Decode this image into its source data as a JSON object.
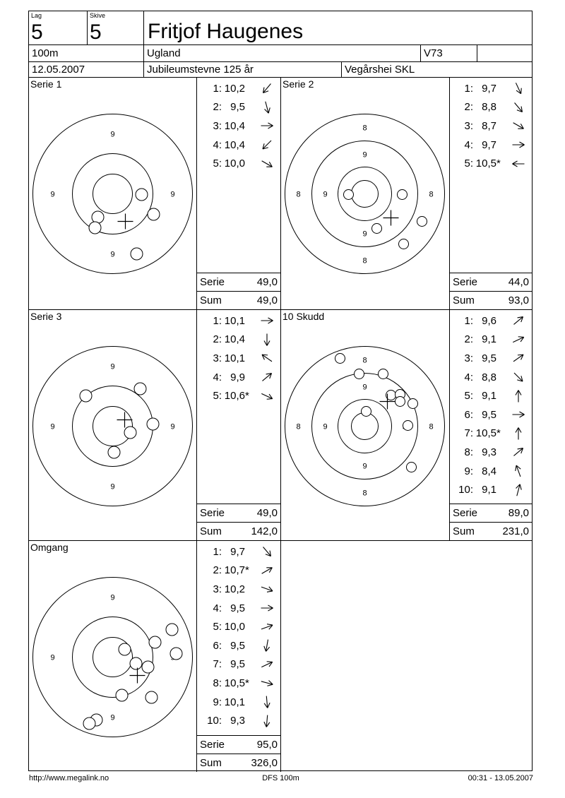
{
  "header": {
    "lag_label": "Lag",
    "lag_value": "5",
    "skive_label": "Skive",
    "skive_value": "5",
    "shooter_name": "Fritjof Haugenes",
    "distance": "100m",
    "arena": "Ugland",
    "shooter_class": "V73",
    "date": "12.05.2007",
    "event": "Jubileumstevne 125 år",
    "club": "Vegårshei SKL"
  },
  "panels": [
    {
      "title": "Serie 1",
      "serie_label": "Serie",
      "serie_value": "49,0",
      "sum_label": "Sum",
      "sum_value": "49,0",
      "shots": [
        {
          "label": "1:",
          "value": "10,2",
          "star": "",
          "arrow_deg": 130
        },
        {
          "label": "2:",
          "value": "9,5",
          "star": "",
          "arrow_deg": 75
        },
        {
          "label": "3:",
          "value": "10,4",
          "star": "",
          "arrow_deg": 0
        },
        {
          "label": "4:",
          "value": "10,4",
          "star": "",
          "arrow_deg": 135
        },
        {
          "label": "5:",
          "value": "10,0",
          "star": "",
          "arrow_deg": 30
        }
      ],
      "target": {
        "rings": [
          113,
          57,
          28
        ],
        "ring_labels": [
          {
            "text": "9",
            "dist": 85
          }
        ],
        "shot_r": 8.5,
        "shots": [
          [
            41,
            1
          ],
          [
            58,
            29
          ],
          [
            -21,
            33
          ],
          [
            -25,
            48
          ],
          [
            34,
            85
          ]
        ],
        "cross": [
          18,
          39
        ]
      }
    },
    {
      "title": "Serie 2",
      "serie_label": "Serie",
      "serie_value": "44,0",
      "sum_label": "Sum",
      "sum_value": "93,0",
      "shots": [
        {
          "label": "1:",
          "value": "9,7",
          "star": "",
          "arrow_deg": 65
        },
        {
          "label": "2:",
          "value": "8,8",
          "star": "",
          "arrow_deg": 50
        },
        {
          "label": "3:",
          "value": "8,7",
          "star": "",
          "arrow_deg": 30
        },
        {
          "label": "4:",
          "value": "9,7",
          "star": "",
          "arrow_deg": 0
        },
        {
          "label": "5:",
          "value": "10,5",
          "star": "*",
          "arrow_deg": 180
        }
      ],
      "target": {
        "rings": [
          113,
          75,
          38,
          19
        ],
        "ring_labels": [
          {
            "text": "8",
            "dist": 94
          },
          {
            "text": "9",
            "dist": 56
          }
        ],
        "shot_r": 7,
        "shots": [
          [
            -23,
            1
          ],
          [
            53,
            1
          ],
          [
            17,
            49
          ],
          [
            81,
            39
          ],
          [
            55,
            71
          ]
        ],
        "cross": [
          37,
          34
        ]
      }
    },
    {
      "title": "Serie 3",
      "serie_label": "Serie",
      "serie_value": "49,0",
      "sum_label": "Sum",
      "sum_value": "142,0",
      "shots": [
        {
          "label": "1:",
          "value": "10,1",
          "star": "",
          "arrow_deg": 0
        },
        {
          "label": "2:",
          "value": "10,4",
          "star": "",
          "arrow_deg": 90
        },
        {
          "label": "3:",
          "value": "10,1",
          "star": "",
          "arrow_deg": -145
        },
        {
          "label": "4:",
          "value": "9,9",
          "star": "",
          "arrow_deg": -40
        },
        {
          "label": "5:",
          "value": "10,6",
          "star": "*",
          "arrow_deg": 25
        }
      ],
      "target": {
        "rings": [
          113,
          57,
          28
        ],
        "ring_labels": [
          {
            "text": "9",
            "dist": 85
          }
        ],
        "shot_r": 8.5,
        "shots": [
          [
            -38,
            -43
          ],
          [
            39,
            -53
          ],
          [
            57,
            -3
          ],
          [
            25,
            9
          ],
          [
            2,
            37
          ]
        ],
        "cross": [
          17,
          -9
        ]
      }
    },
    {
      "title": "10 Skudd",
      "serie_label": "Serie",
      "serie_value": "89,0",
      "sum_label": "Sum",
      "sum_value": "231,0",
      "shots": [
        {
          "label": "1:",
          "value": "9,6",
          "star": "",
          "arrow_deg": -40
        },
        {
          "label": "2:",
          "value": "9,1",
          "star": "",
          "arrow_deg": -25
        },
        {
          "label": "3:",
          "value": "9,5",
          "star": "",
          "arrow_deg": -35
        },
        {
          "label": "4:",
          "value": "8,8",
          "star": "",
          "arrow_deg": 45
        },
        {
          "label": "5:",
          "value": "9,1",
          "star": "",
          "arrow_deg": -90
        },
        {
          "label": "6:",
          "value": "9,5",
          "star": "",
          "arrow_deg": 0
        },
        {
          "label": "7:",
          "value": "10,5",
          "star": "*",
          "arrow_deg": -90
        },
        {
          "label": "8:",
          "value": "9,3",
          "star": "",
          "arrow_deg": -40
        },
        {
          "label": "9:",
          "value": "8,4",
          "star": "",
          "arrow_deg": -110
        },
        {
          "label": "10:",
          "value": "9,1",
          "star": "",
          "arrow_deg": -75
        }
      ],
      "target": {
        "rings": [
          113,
          75,
          38,
          19
        ],
        "ring_labels": [
          {
            "text": "8",
            "dist": 94
          },
          {
            "text": "9",
            "dist": 56
          }
        ],
        "shot_r": 7,
        "shots": [
          [
            -35,
            -96
          ],
          [
            -8,
            -74
          ],
          [
            26,
            -74
          ],
          [
            37,
            -44
          ],
          [
            50,
            -45
          ],
          [
            50,
            -35
          ],
          [
            68,
            -32
          ],
          [
            61,
            -1
          ],
          [
            2,
            -21
          ],
          [
            66,
            58
          ]
        ],
        "cross": [
          32,
          -35
        ]
      }
    },
    {
      "title": "Omgang",
      "serie_label": "Serie",
      "serie_value": "95,0",
      "sum_label": "Sum",
      "sum_value": "326,0",
      "shots": [
        {
          "label": "1:",
          "value": "9,7",
          "star": "",
          "arrow_deg": 50
        },
        {
          "label": "2:",
          "value": "10,7",
          "star": "*",
          "arrow_deg": -30
        },
        {
          "label": "3:",
          "value": "10,2",
          "star": "",
          "arrow_deg": 20
        },
        {
          "label": "4:",
          "value": "9,5",
          "star": "",
          "arrow_deg": 0
        },
        {
          "label": "5:",
          "value": "10,0",
          "star": "",
          "arrow_deg": -20
        },
        {
          "label": "6:",
          "value": "9,5",
          "star": "",
          "arrow_deg": 100
        },
        {
          "label": "7:",
          "value": "9,5",
          "star": "",
          "arrow_deg": -25
        },
        {
          "label": "8:",
          "value": "10,5",
          "star": "*",
          "arrow_deg": 15
        },
        {
          "label": "9:",
          "value": "10,1",
          "star": "",
          "arrow_deg": 85
        },
        {
          "label": "10:",
          "value": "9,3",
          "star": "",
          "arrow_deg": 95
        }
      ],
      "target": {
        "rings": [
          113,
          57,
          28
        ],
        "ring_labels": [
          {
            "text": "9",
            "dist": 85
          }
        ],
        "shot_r": 8.5,
        "shots": [
          [
            84,
            -39
          ],
          [
            60,
            -21
          ],
          [
            17,
            -11
          ],
          [
            90,
            -5
          ],
          [
            33,
            9
          ],
          [
            50,
            14
          ],
          [
            13,
            54
          ],
          [
            55,
            57
          ],
          [
            -23,
            89
          ],
          [
            -33,
            94
          ]
        ],
        "cross": [
          35,
          26
        ]
      }
    }
  ],
  "footer": {
    "website": "http://www.megalink.no",
    "program": "DFS 100m",
    "printed": "00:31 - 13.05.2007"
  }
}
